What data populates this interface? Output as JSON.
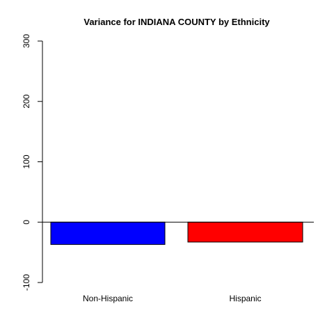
{
  "chart_data": {
    "type": "bar",
    "title": "Variance for INDIANA COUNTY by Ethnicity",
    "xlabel": "",
    "ylabel": "",
    "categories": [
      "Non-Hispanic",
      "Hispanic"
    ],
    "values": [
      -37,
      -33
    ],
    "colors": [
      "#0000ff",
      "#ff0000"
    ],
    "ylim": [
      -100,
      300
    ],
    "yticks": [
      -100,
      0,
      100,
      200,
      300
    ],
    "ytick_labels": [
      "-100",
      "0",
      "100",
      "200",
      "300"
    ],
    "zero_line": true,
    "grid": false,
    "legend": "none"
  }
}
